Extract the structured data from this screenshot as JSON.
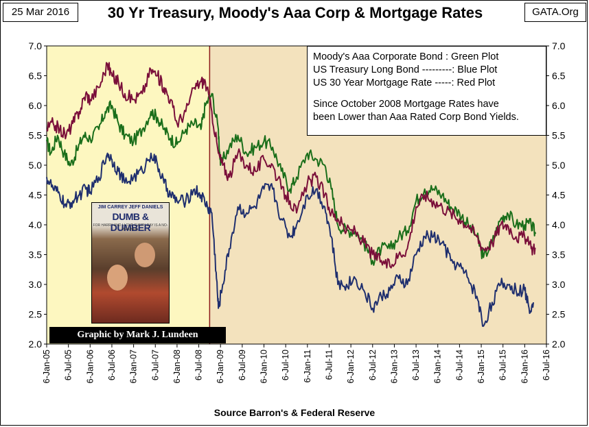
{
  "header": {
    "date": "25 Mar 2016",
    "title": "30 Yr Treasury, Moody's Aaa Corp & Mortgage Rates",
    "source_tag": "GATA.Org"
  },
  "legend": {
    "line1": "Moody's Aaa Corporate Bond : Green Plot",
    "line2": "US Treasury Long Bond ---------: Blue Plot",
    "line3": "US 30 Year Mortgage Rate -----:  Red Plot",
    "note1": "Since October 2008 Mortgage Rates have",
    "note2": "been Lower than Aaa Rated Corp Bond Yields."
  },
  "photo": {
    "names": "JIM CARREY   JEFF DANIELS",
    "film_title": "DUMB & DUMBER",
    "tagline": "FOR HARRY AND LLOYD EVERY DAY IS A NO-BRAINER."
  },
  "credit": "Graphic by Mark J. Lundeen",
  "footer": "Source Barron's & Federal Reserve",
  "colors": {
    "aaa": "#1a6e1a",
    "treasury": "#1f2f6e",
    "mortgage": "#7a0f3a",
    "pre_shade": "#fdf7c0",
    "post_shade": "#f3e2bd",
    "divider": "#8b1a1a"
  },
  "chart_data": {
    "type": "line",
    "title": "30 Yr Treasury, Moody's Aaa Corp & Mortgage Rates",
    "xlabel": "",
    "ylabel": "",
    "ylim": [
      2.0,
      7.0
    ],
    "yticks": [
      "7.0",
      "6.5",
      "6.0",
      "5.5",
      "5.0",
      "4.5",
      "4.0",
      "3.5",
      "3.0",
      "2.5",
      "2.0"
    ],
    "xlim": [
      2005.0,
      2016.5
    ],
    "xticks": [
      "6-Jan-05",
      "6-Jul-05",
      "6-Jan-06",
      "6-Jul-06",
      "6-Jan-07",
      "6-Jul-07",
      "6-Jan-08",
      "6-Jul-08",
      "6-Jan-09",
      "6-Jul-09",
      "6-Jan-10",
      "6-Jul-10",
      "6-Jan-11",
      "6-Jul-11",
      "6-Jan-12",
      "6-Jul-12",
      "6-Jan-13",
      "6-Jul-13",
      "6-Jan-14",
      "6-Jul-14",
      "6-Jan-15",
      "6-Jul-15",
      "6-Jan-16",
      "6-Jul-16"
    ],
    "shade_split": 2008.75,
    "grid": false,
    "series": [
      {
        "name": "Moody's Aaa Corporate Bond",
        "color": "aaa",
        "points": [
          [
            2005.0,
            5.4
          ],
          [
            2005.1,
            5.2
          ],
          [
            2005.25,
            5.5
          ],
          [
            2005.4,
            5.2
          ],
          [
            2005.55,
            5.0
          ],
          [
            2005.7,
            5.25
          ],
          [
            2005.85,
            5.5
          ],
          [
            2006.0,
            5.45
          ],
          [
            2006.2,
            5.6
          ],
          [
            2006.35,
            5.9
          ],
          [
            2006.5,
            6.0
          ],
          [
            2006.65,
            5.7
          ],
          [
            2006.8,
            5.5
          ],
          [
            2007.0,
            5.4
          ],
          [
            2007.2,
            5.6
          ],
          [
            2007.4,
            5.9
          ],
          [
            2007.55,
            5.8
          ],
          [
            2007.7,
            5.6
          ],
          [
            2007.85,
            5.45
          ],
          [
            2008.0,
            5.35
          ],
          [
            2008.2,
            5.6
          ],
          [
            2008.4,
            5.7
          ],
          [
            2008.55,
            5.6
          ],
          [
            2008.65,
            6.0
          ],
          [
            2008.8,
            6.2
          ],
          [
            2008.95,
            5.6
          ],
          [
            2009.0,
            5.0
          ],
          [
            2009.2,
            5.3
          ],
          [
            2009.4,
            5.5
          ],
          [
            2009.6,
            5.2
          ],
          [
            2009.8,
            5.3
          ],
          [
            2010.0,
            5.4
          ],
          [
            2010.2,
            5.3
          ],
          [
            2010.4,
            4.9
          ],
          [
            2010.6,
            4.6
          ],
          [
            2010.75,
            4.8
          ],
          [
            2011.0,
            5.2
          ],
          [
            2011.2,
            5.1
          ],
          [
            2011.4,
            5.0
          ],
          [
            2011.55,
            4.6
          ],
          [
            2011.7,
            4.0
          ],
          [
            2011.9,
            3.9
          ],
          [
            2012.1,
            3.9
          ],
          [
            2012.3,
            3.7
          ],
          [
            2012.5,
            3.4
          ],
          [
            2012.7,
            3.6
          ],
          [
            2012.9,
            3.6
          ],
          [
            2013.1,
            3.8
          ],
          [
            2013.3,
            3.9
          ],
          [
            2013.5,
            4.4
          ],
          [
            2013.7,
            4.6
          ],
          [
            2013.9,
            4.6
          ],
          [
            2014.1,
            4.5
          ],
          [
            2014.3,
            4.3
          ],
          [
            2014.5,
            4.2
          ],
          [
            2014.7,
            4.0
          ],
          [
            2014.9,
            3.8
          ],
          [
            2015.05,
            3.45
          ],
          [
            2015.25,
            3.7
          ],
          [
            2015.45,
            4.1
          ],
          [
            2015.6,
            4.2
          ],
          [
            2015.8,
            4.0
          ],
          [
            2016.0,
            4.0
          ],
          [
            2016.15,
            4.0
          ],
          [
            2016.25,
            3.85
          ]
        ]
      },
      {
        "name": "US Treasury Long Bond",
        "color": "treasury",
        "points": [
          [
            2005.0,
            4.8
          ],
          [
            2005.15,
            4.6
          ],
          [
            2005.3,
            4.5
          ],
          [
            2005.45,
            4.3
          ],
          [
            2005.6,
            4.4
          ],
          [
            2005.75,
            4.5
          ],
          [
            2005.9,
            4.6
          ],
          [
            2006.0,
            4.55
          ],
          [
            2006.2,
            4.8
          ],
          [
            2006.4,
            5.2
          ],
          [
            2006.5,
            5.1
          ],
          [
            2006.65,
            4.9
          ],
          [
            2006.8,
            4.7
          ],
          [
            2007.0,
            4.8
          ],
          [
            2007.2,
            4.9
          ],
          [
            2007.4,
            5.2
          ],
          [
            2007.55,
            5.0
          ],
          [
            2007.7,
            4.7
          ],
          [
            2007.85,
            4.5
          ],
          [
            2008.0,
            4.4
          ],
          [
            2008.2,
            4.4
          ],
          [
            2008.4,
            4.6
          ],
          [
            2008.55,
            4.5
          ],
          [
            2008.7,
            4.3
          ],
          [
            2008.8,
            4.2
          ],
          [
            2008.9,
            3.2
          ],
          [
            2008.95,
            2.6
          ],
          [
            2009.05,
            3.0
          ],
          [
            2009.2,
            3.6
          ],
          [
            2009.4,
            4.3
          ],
          [
            2009.6,
            4.2
          ],
          [
            2009.8,
            4.3
          ],
          [
            2010.0,
            4.6
          ],
          [
            2010.2,
            4.6
          ],
          [
            2010.4,
            4.1
          ],
          [
            2010.6,
            3.8
          ],
          [
            2010.75,
            4.0
          ],
          [
            2011.0,
            4.5
          ],
          [
            2011.2,
            4.6
          ],
          [
            2011.4,
            4.3
          ],
          [
            2011.55,
            3.8
          ],
          [
            2011.7,
            3.0
          ],
          [
            2011.9,
            3.0
          ],
          [
            2012.1,
            3.1
          ],
          [
            2012.3,
            2.9
          ],
          [
            2012.5,
            2.6
          ],
          [
            2012.7,
            2.8
          ],
          [
            2012.9,
            2.9
          ],
          [
            2013.1,
            3.1
          ],
          [
            2013.3,
            3.0
          ],
          [
            2013.5,
            3.5
          ],
          [
            2013.7,
            3.8
          ],
          [
            2013.9,
            3.8
          ],
          [
            2014.1,
            3.7
          ],
          [
            2014.3,
            3.4
          ],
          [
            2014.5,
            3.3
          ],
          [
            2014.7,
            3.1
          ],
          [
            2014.9,
            2.8
          ],
          [
            2015.05,
            2.3
          ],
          [
            2015.25,
            2.7
          ],
          [
            2015.45,
            3.0
          ],
          [
            2015.6,
            3.0
          ],
          [
            2015.8,
            2.9
          ],
          [
            2016.0,
            2.9
          ],
          [
            2016.1,
            2.6
          ],
          [
            2016.2,
            2.7
          ]
        ]
      },
      {
        "name": "US 30 Year Mortgage Rate",
        "color": "mortgage",
        "points": [
          [
            2005.0,
            5.6
          ],
          [
            2005.15,
            5.7
          ],
          [
            2005.3,
            5.6
          ],
          [
            2005.45,
            5.5
          ],
          [
            2005.6,
            5.7
          ],
          [
            2005.75,
            5.9
          ],
          [
            2005.9,
            6.2
          ],
          [
            2006.0,
            6.1
          ],
          [
            2006.2,
            6.3
          ],
          [
            2006.4,
            6.7
          ],
          [
            2006.5,
            6.5
          ],
          [
            2006.65,
            6.4
          ],
          [
            2006.8,
            6.2
          ],
          [
            2007.0,
            6.1
          ],
          [
            2007.2,
            6.2
          ],
          [
            2007.4,
            6.6
          ],
          [
            2007.55,
            6.5
          ],
          [
            2007.7,
            6.3
          ],
          [
            2007.85,
            6.1
          ],
          [
            2008.0,
            5.7
          ],
          [
            2008.2,
            5.9
          ],
          [
            2008.4,
            6.3
          ],
          [
            2008.55,
            6.4
          ],
          [
            2008.65,
            6.4
          ],
          [
            2008.8,
            5.9
          ],
          [
            2008.95,
            5.2
          ],
          [
            2009.05,
            5.0
          ],
          [
            2009.2,
            4.8
          ],
          [
            2009.4,
            5.2
          ],
          [
            2009.6,
            5.0
          ],
          [
            2009.8,
            4.9
          ],
          [
            2010.0,
            5.1
          ],
          [
            2010.2,
            5.0
          ],
          [
            2010.4,
            4.6
          ],
          [
            2010.6,
            4.4
          ],
          [
            2010.75,
            4.2
          ],
          [
            2011.0,
            4.7
          ],
          [
            2011.2,
            4.8
          ],
          [
            2011.4,
            4.5
          ],
          [
            2011.55,
            4.2
          ],
          [
            2011.7,
            4.1
          ],
          [
            2011.9,
            3.9
          ],
          [
            2012.1,
            3.9
          ],
          [
            2012.3,
            3.7
          ],
          [
            2012.5,
            3.5
          ],
          [
            2012.7,
            3.4
          ],
          [
            2012.9,
            3.3
          ],
          [
            2013.1,
            3.5
          ],
          [
            2013.3,
            3.6
          ],
          [
            2013.5,
            4.3
          ],
          [
            2013.7,
            4.5
          ],
          [
            2013.9,
            4.4
          ],
          [
            2014.1,
            4.3
          ],
          [
            2014.3,
            4.2
          ],
          [
            2014.5,
            4.1
          ],
          [
            2014.7,
            4.0
          ],
          [
            2014.9,
            3.8
          ],
          [
            2015.05,
            3.6
          ],
          [
            2015.25,
            3.7
          ],
          [
            2015.45,
            4.0
          ],
          [
            2015.6,
            4.0
          ],
          [
            2015.8,
            3.8
          ],
          [
            2016.0,
            3.8
          ],
          [
            2016.15,
            3.6
          ],
          [
            2016.25,
            3.6
          ]
        ]
      }
    ]
  }
}
